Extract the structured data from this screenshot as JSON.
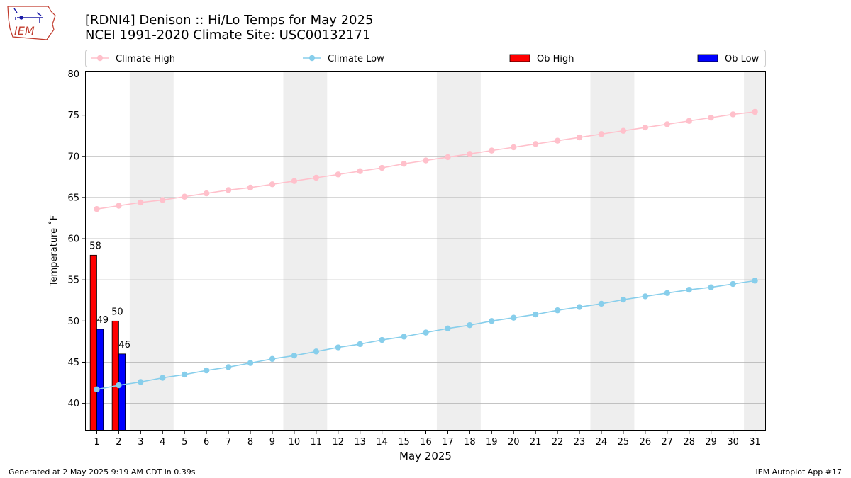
{
  "header": {
    "title_line1": "[RDNI4] Denison :: Hi/Lo Temps for May 2025",
    "title_line2": "NCEI 1991-2020 Climate Site: USC00132171"
  },
  "logo": {
    "text": "IEM",
    "icon": "iowa-state-outline-icon"
  },
  "footer": {
    "generated": "Generated at 2 May 2025 9:19 AM CDT in 0.39s",
    "app": "IEM Autoplot App #17"
  },
  "colors": {
    "climate_high": "#ffc0cb",
    "climate_low": "#87ceeb",
    "ob_high": "#ff0000",
    "ob_low": "#0000ff",
    "weekend_band": "#eeeeee",
    "grid": "#b0b0b0"
  },
  "chart_data": {
    "type": "bar",
    "xlabel": "May 2025",
    "ylabel": "Temperature ˚F",
    "ylim": [
      36.7,
      80.3
    ],
    "yticks": [
      40,
      45,
      50,
      55,
      60,
      65,
      70,
      75,
      80
    ],
    "xlim": [
      0.5,
      31.5
    ],
    "x": [
      1,
      2,
      3,
      4,
      5,
      6,
      7,
      8,
      9,
      10,
      11,
      12,
      13,
      14,
      15,
      16,
      17,
      18,
      19,
      20,
      21,
      22,
      23,
      24,
      25,
      26,
      27,
      28,
      29,
      30,
      31
    ],
    "grid": "y-major",
    "legend_position": "top-outside",
    "legend": [
      "Climate High",
      "Climate Low",
      "Ob High",
      "Ob Low"
    ],
    "weekend_bands": [
      [
        2.5,
        4.5
      ],
      [
        9.5,
        11.5
      ],
      [
        16.5,
        18.5
      ],
      [
        23.5,
        25.5
      ],
      [
        30.5,
        31.5
      ]
    ],
    "series": [
      {
        "name": "Climate High",
        "kind": "line",
        "values": [
          63.6,
          64.0,
          64.4,
          64.7,
          65.1,
          65.5,
          65.9,
          66.2,
          66.6,
          67.0,
          67.4,
          67.8,
          68.2,
          68.6,
          69.1,
          69.5,
          69.9,
          70.3,
          70.7,
          71.1,
          71.5,
          71.9,
          72.3,
          72.7,
          73.1,
          73.5,
          73.9,
          74.3,
          74.7,
          75.1,
          75.4
        ]
      },
      {
        "name": "Climate Low",
        "kind": "line",
        "values": [
          41.7,
          42.2,
          42.6,
          43.1,
          43.5,
          44.0,
          44.4,
          44.9,
          45.4,
          45.8,
          46.3,
          46.8,
          47.2,
          47.7,
          48.1,
          48.6,
          49.1,
          49.5,
          50.0,
          50.4,
          50.8,
          51.3,
          51.7,
          52.1,
          52.6,
          53.0,
          53.4,
          53.8,
          54.1,
          54.5,
          54.9
        ]
      },
      {
        "name": "Ob High",
        "kind": "bar",
        "x": [
          1,
          2
        ],
        "values": [
          58,
          50
        ]
      },
      {
        "name": "Ob Low",
        "kind": "bar",
        "x": [
          1,
          2
        ],
        "values": [
          49,
          46
        ]
      }
    ]
  }
}
